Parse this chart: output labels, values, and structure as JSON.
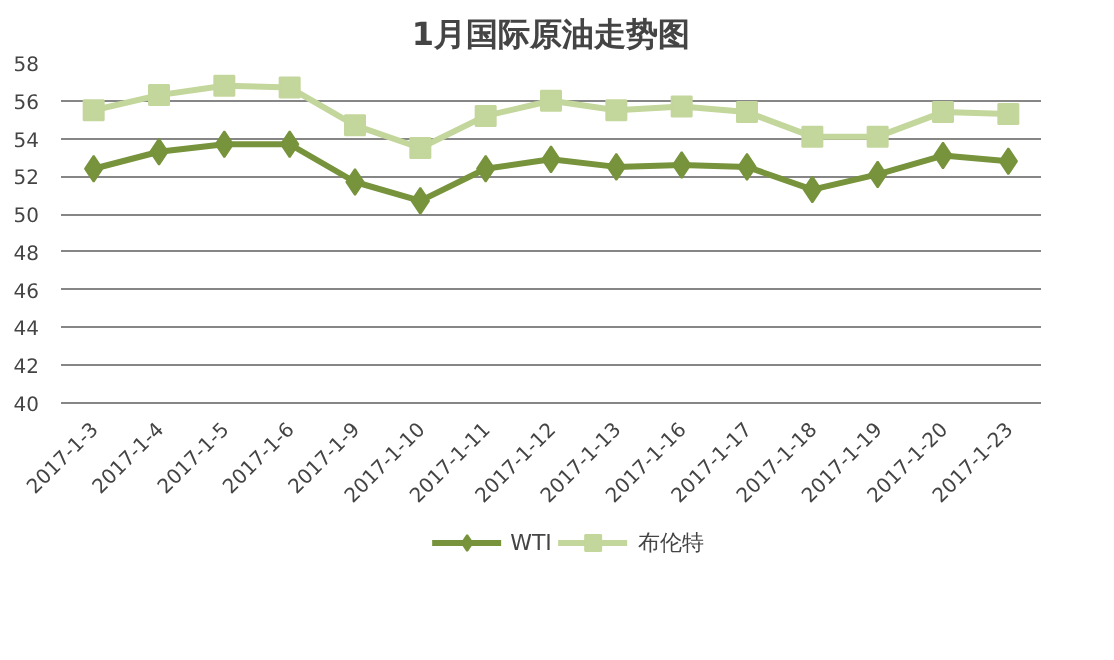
{
  "chart_data": {
    "type": "line",
    "title": "1月国际原油走势图",
    "categories": [
      "2017-1-3",
      "2017-1-4",
      "2017-1-5",
      "2017-1-6",
      "2017-1-9",
      "2017-1-10",
      "2017-1-11",
      "2017-1-12",
      "2017-1-13",
      "2017-1-16",
      "2017-1-17",
      "2017-1-18",
      "2017-1-19",
      "2017-1-20",
      "2017-1-23"
    ],
    "series": [
      {
        "name": "WTI",
        "color": "#77933c",
        "marker": "diamond",
        "values": [
          52.4,
          53.3,
          53.7,
          53.7,
          51.7,
          50.7,
          52.4,
          52.9,
          52.5,
          52.6,
          52.5,
          51.3,
          52.1,
          53.1,
          52.8
        ]
      },
      {
        "name": "布伦特",
        "color": "#c3d69b",
        "marker": "square",
        "values": [
          55.5,
          56.3,
          56.8,
          56.7,
          54.7,
          53.5,
          55.2,
          56.0,
          55.5,
          55.7,
          55.4,
          54.1,
          54.1,
          55.4,
          55.3
        ]
      }
    ],
    "ylim": [
      40,
      58
    ],
    "yticks": [
      40,
      42,
      44,
      46,
      48,
      50,
      52,
      54,
      56,
      58
    ],
    "grid": "y",
    "legend": "bottom",
    "line_style": "solid"
  }
}
